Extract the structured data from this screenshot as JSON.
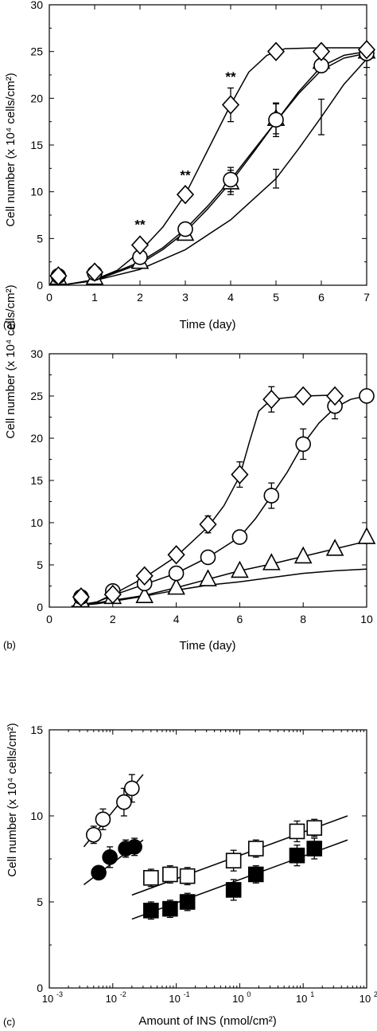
{
  "chart_data": [
    {
      "type": "line",
      "panel_label": "(a)",
      "xlabel": "Time (day)",
      "ylabel": "Cell number (x 10⁴ cells/cm²)",
      "xlim": [
        0,
        7
      ],
      "ylim": [
        0,
        30
      ],
      "x_ticks": [
        0,
        1,
        2,
        3,
        4,
        5,
        6,
        7
      ],
      "y_ticks": [
        0,
        5,
        10,
        15,
        20,
        25,
        30
      ],
      "marker_order": [
        "square",
        "triangle",
        "circle",
        "diamond"
      ],
      "series": [
        {
          "marker": "diamond",
          "filled": false,
          "points": [
            [
              0.2,
              1.0
            ],
            [
              1,
              1.4
            ],
            [
              2,
              4.3
            ],
            [
              3,
              9.7
            ],
            [
              4,
              19.3
            ],
            [
              5,
              25.0
            ],
            [
              6,
              25.0
            ],
            [
              7,
              25.2
            ]
          ],
          "errors": [
            0,
            0,
            0,
            0,
            1.8,
            0,
            0,
            0
          ],
          "curve": [
            [
              0.4,
              0.1
            ],
            [
              1,
              0.6
            ],
            [
              1.5,
              1.6
            ],
            [
              2,
              3.6
            ],
            [
              2.5,
              6.2
            ],
            [
              3,
              9.7
            ],
            [
              3.5,
              14.5
            ],
            [
              4,
              19.3
            ],
            [
              4.4,
              22.8
            ],
            [
              4.8,
              24.6
            ],
            [
              5.2,
              25.3
            ],
            [
              6,
              25.4
            ],
            [
              7,
              25.4
            ]
          ]
        },
        {
          "marker": "circle",
          "filled": false,
          "points": [
            [
              0.2,
              1.0
            ],
            [
              1,
              1.3
            ],
            [
              2,
              3.0
            ],
            [
              3,
              6.0
            ],
            [
              4,
              11.3
            ],
            [
              5,
              17.7
            ],
            [
              6,
              23.5
            ],
            [
              7,
              24.8
            ]
          ],
          "errors": [
            0,
            0,
            0,
            0,
            1.3,
            1.8,
            0,
            0
          ],
          "curve": [
            [
              0.4,
              0.1
            ],
            [
              1,
              0.5
            ],
            [
              2,
              2.5
            ],
            [
              2.5,
              4.0
            ],
            [
              3,
              6.0
            ],
            [
              3.5,
              8.5
            ],
            [
              4,
              11.3
            ],
            [
              4.5,
              14.4
            ],
            [
              5,
              17.5
            ],
            [
              5.5,
              20.5
            ],
            [
              6,
              23.0
            ],
            [
              6.5,
              24.3
            ],
            [
              7,
              24.8
            ]
          ]
        },
        {
          "marker": "triangle",
          "filled": false,
          "points": [
            [
              0.2,
              0.8
            ],
            [
              1,
              0.8
            ],
            [
              2,
              2.5
            ],
            [
              3,
              5.5
            ],
            [
              4,
              11.0
            ],
            [
              5,
              17.8
            ],
            [
              6,
              23.9
            ],
            [
              7,
              25.0
            ]
          ],
          "errors": [
            0,
            0,
            0,
            0,
            1.3,
            1.6,
            0,
            0
          ],
          "curve": [
            [
              0.4,
              0.1
            ],
            [
              1,
              0.5
            ],
            [
              2,
              2.3
            ],
            [
              2.5,
              3.8
            ],
            [
              3,
              5.7
            ],
            [
              3.5,
              8.2
            ],
            [
              4,
              11.0
            ],
            [
              4.5,
              14.2
            ],
            [
              5,
              17.5
            ],
            [
              5.5,
              20.7
            ],
            [
              6,
              23.4
            ],
            [
              6.5,
              24.6
            ],
            [
              7,
              25.0
            ]
          ]
        },
        {
          "marker": "square",
          "filled": true,
          "points": [
            [
              0.2,
              1.0
            ],
            [
              1,
              0.9
            ],
            [
              2,
              1.8
            ],
            [
              3,
              3.9
            ],
            [
              4,
              6.8
            ],
            [
              5,
              11.4
            ],
            [
              6,
              18.0
            ],
            [
              7,
              24.2
            ]
          ],
          "errors": [
            0,
            0,
            0,
            0,
            0,
            1.0,
            1.9,
            0.9
          ],
          "curve": [
            [
              0.4,
              0.1
            ],
            [
              1,
              0.5
            ],
            [
              2,
              1.7
            ],
            [
              3,
              3.8
            ],
            [
              4,
              7.0
            ],
            [
              5,
              11.4
            ],
            [
              5.5,
              14.6
            ],
            [
              6,
              18.0
            ],
            [
              6.5,
              21.5
            ],
            [
              7,
              24.2
            ]
          ]
        }
      ],
      "annotations": [
        {
          "text": "**",
          "x": 2,
          "y": 6.0
        },
        {
          "text": "**",
          "x": 3,
          "y": 11.3
        },
        {
          "text": "**",
          "x": 4,
          "y": 21.8
        }
      ]
    },
    {
      "type": "line",
      "panel_label": "(b)",
      "xlabel": "Time (day)",
      "ylabel": "Cell number (x 10⁴ cells/cm²)",
      "xlim": [
        0,
        10
      ],
      "ylim": [
        0,
        30
      ],
      "x_ticks": [
        0,
        2,
        4,
        6,
        8,
        10
      ],
      "y_ticks": [
        0,
        5,
        10,
        15,
        20,
        25,
        30
      ],
      "marker_order": [
        "square",
        "triangle",
        "circle",
        "diamond"
      ],
      "series": [
        {
          "marker": "diamond",
          "filled": false,
          "points": [
            [
              1,
              1.2
            ],
            [
              2,
              1.5
            ],
            [
              3,
              3.7
            ],
            [
              4,
              6.2
            ],
            [
              5,
              9.8
            ],
            [
              6,
              15.7
            ],
            [
              7,
              24.6
            ],
            [
              8,
              25.0
            ],
            [
              9,
              25.0
            ]
          ],
          "errors": [
            0,
            0,
            0,
            0,
            1.0,
            1.5,
            1.5,
            0,
            0
          ],
          "curve": [
            [
              0.7,
              0.1
            ],
            [
              1.5,
              0.6
            ],
            [
              2,
              1.5
            ],
            [
              3,
              3.5
            ],
            [
              4,
              6.0
            ],
            [
              5,
              9.5
            ],
            [
              5.5,
              12.0
            ],
            [
              6,
              15.5
            ],
            [
              6.3,
              19.5
            ],
            [
              6.6,
              23.2
            ],
            [
              7,
              24.6
            ],
            [
              8,
              25.0
            ],
            [
              9,
              25.1
            ]
          ]
        },
        {
          "marker": "circle",
          "filled": false,
          "points": [
            [
              1,
              1.2
            ],
            [
              2,
              1.9
            ],
            [
              3,
              2.8
            ],
            [
              4,
              4.0
            ],
            [
              5,
              5.9
            ],
            [
              6,
              8.3
            ],
            [
              7,
              13.2
            ],
            [
              8,
              19.3
            ],
            [
              9,
              23.8
            ],
            [
              10,
              25.0
            ]
          ],
          "errors": [
            0,
            0,
            0,
            0,
            0,
            0,
            1.5,
            1.8,
            1.5,
            0
          ],
          "curve": [
            [
              0.7,
              0.1
            ],
            [
              1.5,
              0.6
            ],
            [
              2,
              1.4
            ],
            [
              3,
              2.7
            ],
            [
              4,
              4.0
            ],
            [
              5,
              5.9
            ],
            [
              6,
              8.3
            ],
            [
              6.5,
              10.5
            ],
            [
              7,
              13.2
            ],
            [
              7.5,
              16.0
            ],
            [
              8,
              19.3
            ],
            [
              8.5,
              21.8
            ],
            [
              9,
              23.6
            ],
            [
              9.5,
              24.6
            ],
            [
              10,
              25.0
            ]
          ]
        },
        {
          "marker": "triangle",
          "filled": false,
          "points": [
            [
              1,
              0.8
            ],
            [
              2,
              1.2
            ],
            [
              3,
              1.3
            ],
            [
              4,
              2.3
            ],
            [
              5,
              3.3
            ],
            [
              6,
              4.3
            ],
            [
              7,
              5.2
            ],
            [
              8,
              6.0
            ],
            [
              9,
              6.9
            ],
            [
              10,
              8.3
            ]
          ],
          "errors": [
            0,
            0,
            0,
            0,
            0,
            0,
            0,
            0,
            0,
            0
          ],
          "curve": [
            [
              0.7,
              0.1
            ],
            [
              1.5,
              0.5
            ],
            [
              2,
              0.8
            ],
            [
              3,
              1.4
            ],
            [
              4,
              2.3
            ],
            [
              5,
              3.3
            ],
            [
              6,
              4.3
            ],
            [
              7,
              5.1
            ],
            [
              8,
              6.0
            ],
            [
              9,
              6.9
            ],
            [
              10,
              7.8
            ]
          ]
        },
        {
          "marker": "square",
          "filled": true,
          "points": [
            [
              1,
              1.2
            ],
            [
              2,
              1.0
            ],
            [
              3,
              1.2
            ],
            [
              4,
              2.1
            ],
            [
              5,
              2.7
            ],
            [
              6,
              2.8
            ],
            [
              7,
              3.5
            ],
            [
              8,
              4.3
            ],
            [
              9,
              4.4
            ],
            [
              10,
              4.5
            ]
          ],
          "errors": [
            0,
            0,
            0,
            0,
            0,
            0,
            0,
            0,
            0,
            0
          ],
          "curve": [
            [
              0.7,
              0.1
            ],
            [
              1.5,
              0.4
            ],
            [
              2,
              0.7
            ],
            [
              3,
              1.3
            ],
            [
              4,
              2.0
            ],
            [
              5,
              2.6
            ],
            [
              6,
              3.0
            ],
            [
              7,
              3.5
            ],
            [
              8,
              4.0
            ],
            [
              9,
              4.3
            ],
            [
              10,
              4.5
            ]
          ]
        }
      ],
      "annotations": []
    },
    {
      "type": "scatter",
      "panel_label": "(c)",
      "xlabel": "Amount of INS (nmol/cm²)",
      "ylabel": "Cell number (x 10⁴ cells/cm²)",
      "x_scale": "log",
      "xlim": [
        0.001,
        100
      ],
      "ylim": [
        0,
        15
      ],
      "x_ticks": [
        0.001,
        0.01,
        0.1,
        1,
        10,
        100
      ],
      "x_tick_labels": [
        [
          "10",
          "-3"
        ],
        [
          "10",
          "-2"
        ],
        [
          "10",
          "-1"
        ],
        [
          "10",
          "0"
        ],
        [
          "10",
          "1"
        ],
        [
          "10",
          "2"
        ]
      ],
      "y_ticks": [
        0,
        5,
        10,
        15
      ],
      "marker_order": [
        "filled-circle",
        "filled-square",
        "square",
        "circle"
      ],
      "series": [
        {
          "marker": "circle",
          "filled": false,
          "points": [
            [
              0.005,
              8.9
            ],
            [
              0.007,
              9.8
            ],
            [
              0.015,
              10.8
            ],
            [
              0.02,
              11.6
            ]
          ],
          "errors": [
            0.5,
            0.6,
            0.8,
            0.8
          ],
          "fit_line": [
            [
              0.0035,
              8.2
            ],
            [
              0.03,
              12.4
            ]
          ]
        },
        {
          "marker": "circle",
          "filled": true,
          "points": [
            [
              0.006,
              6.7
            ],
            [
              0.009,
              7.6
            ],
            [
              0.016,
              8.1
            ],
            [
              0.022,
              8.2
            ]
          ],
          "errors": [
            0,
            0.6,
            0.5,
            0.5
          ],
          "fit_line": [
            [
              0.0035,
              6.0
            ],
            [
              0.03,
              8.6
            ]
          ]
        },
        {
          "marker": "square",
          "filled": false,
          "points": [
            [
              0.04,
              6.4
            ],
            [
              0.08,
              6.6
            ],
            [
              0.15,
              6.5
            ],
            [
              0.8,
              7.4
            ],
            [
              1.8,
              8.1
            ],
            [
              8,
              9.1
            ],
            [
              15,
              9.3
            ]
          ],
          "errors": [
            0.5,
            0.5,
            0.5,
            0.6,
            0.5,
            0.6,
            0.5
          ],
          "fit_line": [
            [
              0.02,
              5.4
            ],
            [
              50,
              10.0
            ]
          ]
        },
        {
          "marker": "square",
          "filled": true,
          "points": [
            [
              0.04,
              4.5
            ],
            [
              0.08,
              4.6
            ],
            [
              0.15,
              5.0
            ],
            [
              0.8,
              5.7
            ],
            [
              1.8,
              6.6
            ],
            [
              8,
              7.7
            ],
            [
              15,
              8.1
            ]
          ],
          "errors": [
            0.5,
            0.5,
            0.5,
            0.6,
            0.5,
            0.6,
            0.6
          ],
          "fit_line": [
            [
              0.02,
              4.0
            ],
            [
              50,
              8.6
            ]
          ]
        }
      ]
    }
  ]
}
